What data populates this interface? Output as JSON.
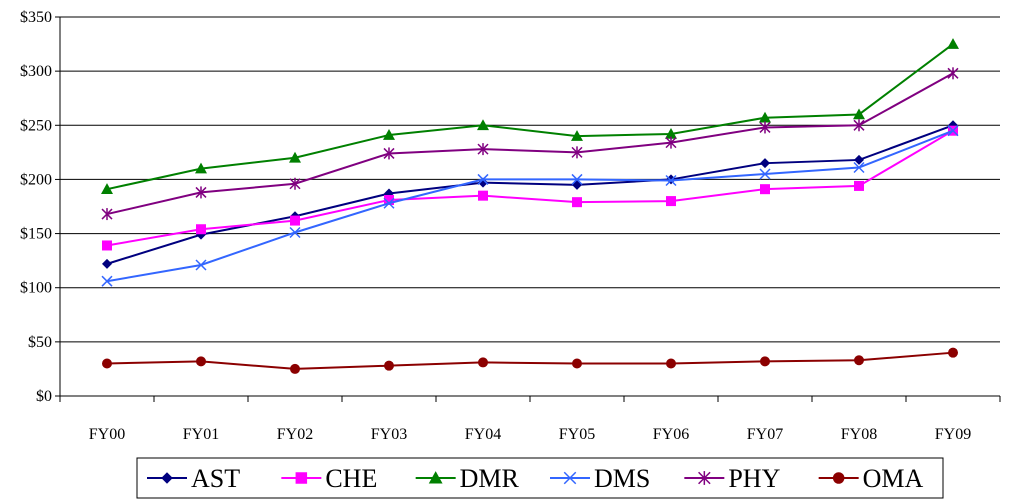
{
  "chart_data": {
    "type": "line",
    "categories": [
      "FY00",
      "FY01",
      "FY02",
      "FY03",
      "FY04",
      "FY05",
      "FY06",
      "FY07",
      "FY08",
      "FY09"
    ],
    "y_ticks": [
      "$0",
      "$50",
      "$100",
      "$150",
      "$200",
      "$250",
      "$300",
      "$350"
    ],
    "ylim": [
      0,
      350
    ],
    "y_step": 50,
    "grid": "horizontal",
    "legend_position": "bottom",
    "series": [
      {
        "name": "AST",
        "color": "#00007F",
        "marker": "diamond",
        "values": [
          122,
          149,
          166,
          187,
          197,
          195,
          200,
          215,
          218,
          250
        ]
      },
      {
        "name": "CHE",
        "color": "#FF00FF",
        "marker": "square",
        "values": [
          139,
          154,
          162,
          181,
          185,
          179,
          180,
          191,
          194,
          245
        ]
      },
      {
        "name": "DMR",
        "color": "#008000",
        "marker": "triangle",
        "values": [
          191,
          210,
          220,
          241,
          250,
          240,
          242,
          257,
          260,
          325
        ]
      },
      {
        "name": "DMS",
        "color": "#3366FF",
        "marker": "x",
        "values": [
          106,
          121,
          151,
          178,
          200,
          200,
          199,
          205,
          211,
          245
        ]
      },
      {
        "name": "PHY",
        "color": "#800080",
        "marker": "star",
        "values": [
          168,
          188,
          196,
          224,
          228,
          225,
          234,
          248,
          250,
          298
        ]
      },
      {
        "name": "OMA",
        "color": "#8B0000",
        "marker": "circle",
        "values": [
          30,
          32,
          25,
          28,
          31,
          30,
          30,
          32,
          33,
          40
        ]
      }
    ]
  }
}
